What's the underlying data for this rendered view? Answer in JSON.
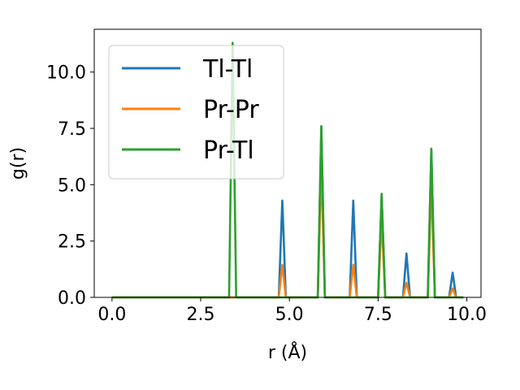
{
  "chart_data": {
    "type": "line",
    "xlabel": "r (Å)",
    "ylabel": "g(r)",
    "xlim": [
      -0.5,
      10.4
    ],
    "ylim": [
      0,
      11.9
    ],
    "xticks": [
      "0.0",
      "2.5",
      "5.0",
      "7.5",
      "10.0"
    ],
    "yticks": [
      "0.0",
      "2.5",
      "5.0",
      "7.5",
      "10.0"
    ],
    "legend_position": "top-left",
    "grid": false,
    "series": [
      {
        "name": "Tl-Tl",
        "color": "#1f77b4",
        "points": [
          [
            0.0,
            0
          ],
          [
            4.7,
            0
          ],
          [
            4.8,
            4.3
          ],
          [
            4.9,
            0
          ],
          [
            5.8,
            0
          ],
          [
            5.9,
            7.6
          ],
          [
            6.0,
            0
          ],
          [
            6.7,
            0
          ],
          [
            6.8,
            4.3
          ],
          [
            6.9,
            0
          ],
          [
            7.5,
            0
          ],
          [
            7.6,
            4.5
          ],
          [
            7.7,
            0
          ],
          [
            8.2,
            0
          ],
          [
            8.3,
            1.95
          ],
          [
            8.4,
            0
          ],
          [
            8.9,
            0
          ],
          [
            9.0,
            6.55
          ],
          [
            9.1,
            0
          ],
          [
            9.5,
            0
          ],
          [
            9.6,
            1.1
          ],
          [
            9.7,
            0
          ],
          [
            9.9,
            0
          ]
        ]
      },
      {
        "name": "Pr-Pr",
        "color": "#ff7f0e",
        "points": [
          [
            0.0,
            0
          ],
          [
            4.7,
            0
          ],
          [
            4.8,
            1.45
          ],
          [
            4.9,
            0
          ],
          [
            5.8,
            0
          ],
          [
            5.9,
            5.8
          ],
          [
            6.0,
            0
          ],
          [
            6.7,
            0
          ],
          [
            6.8,
            1.45
          ],
          [
            6.9,
            0
          ],
          [
            7.5,
            0
          ],
          [
            7.6,
            3.5
          ],
          [
            7.7,
            0
          ],
          [
            8.2,
            0
          ],
          [
            8.3,
            0.65
          ],
          [
            8.4,
            0
          ],
          [
            8.9,
            0
          ],
          [
            9.0,
            5.0
          ],
          [
            9.1,
            0
          ],
          [
            9.5,
            0
          ],
          [
            9.6,
            0.4
          ],
          [
            9.7,
            0
          ],
          [
            9.9,
            0
          ]
        ]
      },
      {
        "name": "Pr-Tl",
        "color": "#2ca02c",
        "points": [
          [
            0.0,
            0
          ],
          [
            3.3,
            0
          ],
          [
            3.4,
            11.3
          ],
          [
            3.5,
            0
          ],
          [
            5.8,
            0
          ],
          [
            5.9,
            7.6
          ],
          [
            6.0,
            0
          ],
          [
            7.5,
            0
          ],
          [
            7.6,
            4.6
          ],
          [
            7.7,
            0
          ],
          [
            8.9,
            0
          ],
          [
            9.0,
            6.6
          ],
          [
            9.1,
            0
          ],
          [
            9.9,
            0
          ]
        ]
      }
    ]
  }
}
